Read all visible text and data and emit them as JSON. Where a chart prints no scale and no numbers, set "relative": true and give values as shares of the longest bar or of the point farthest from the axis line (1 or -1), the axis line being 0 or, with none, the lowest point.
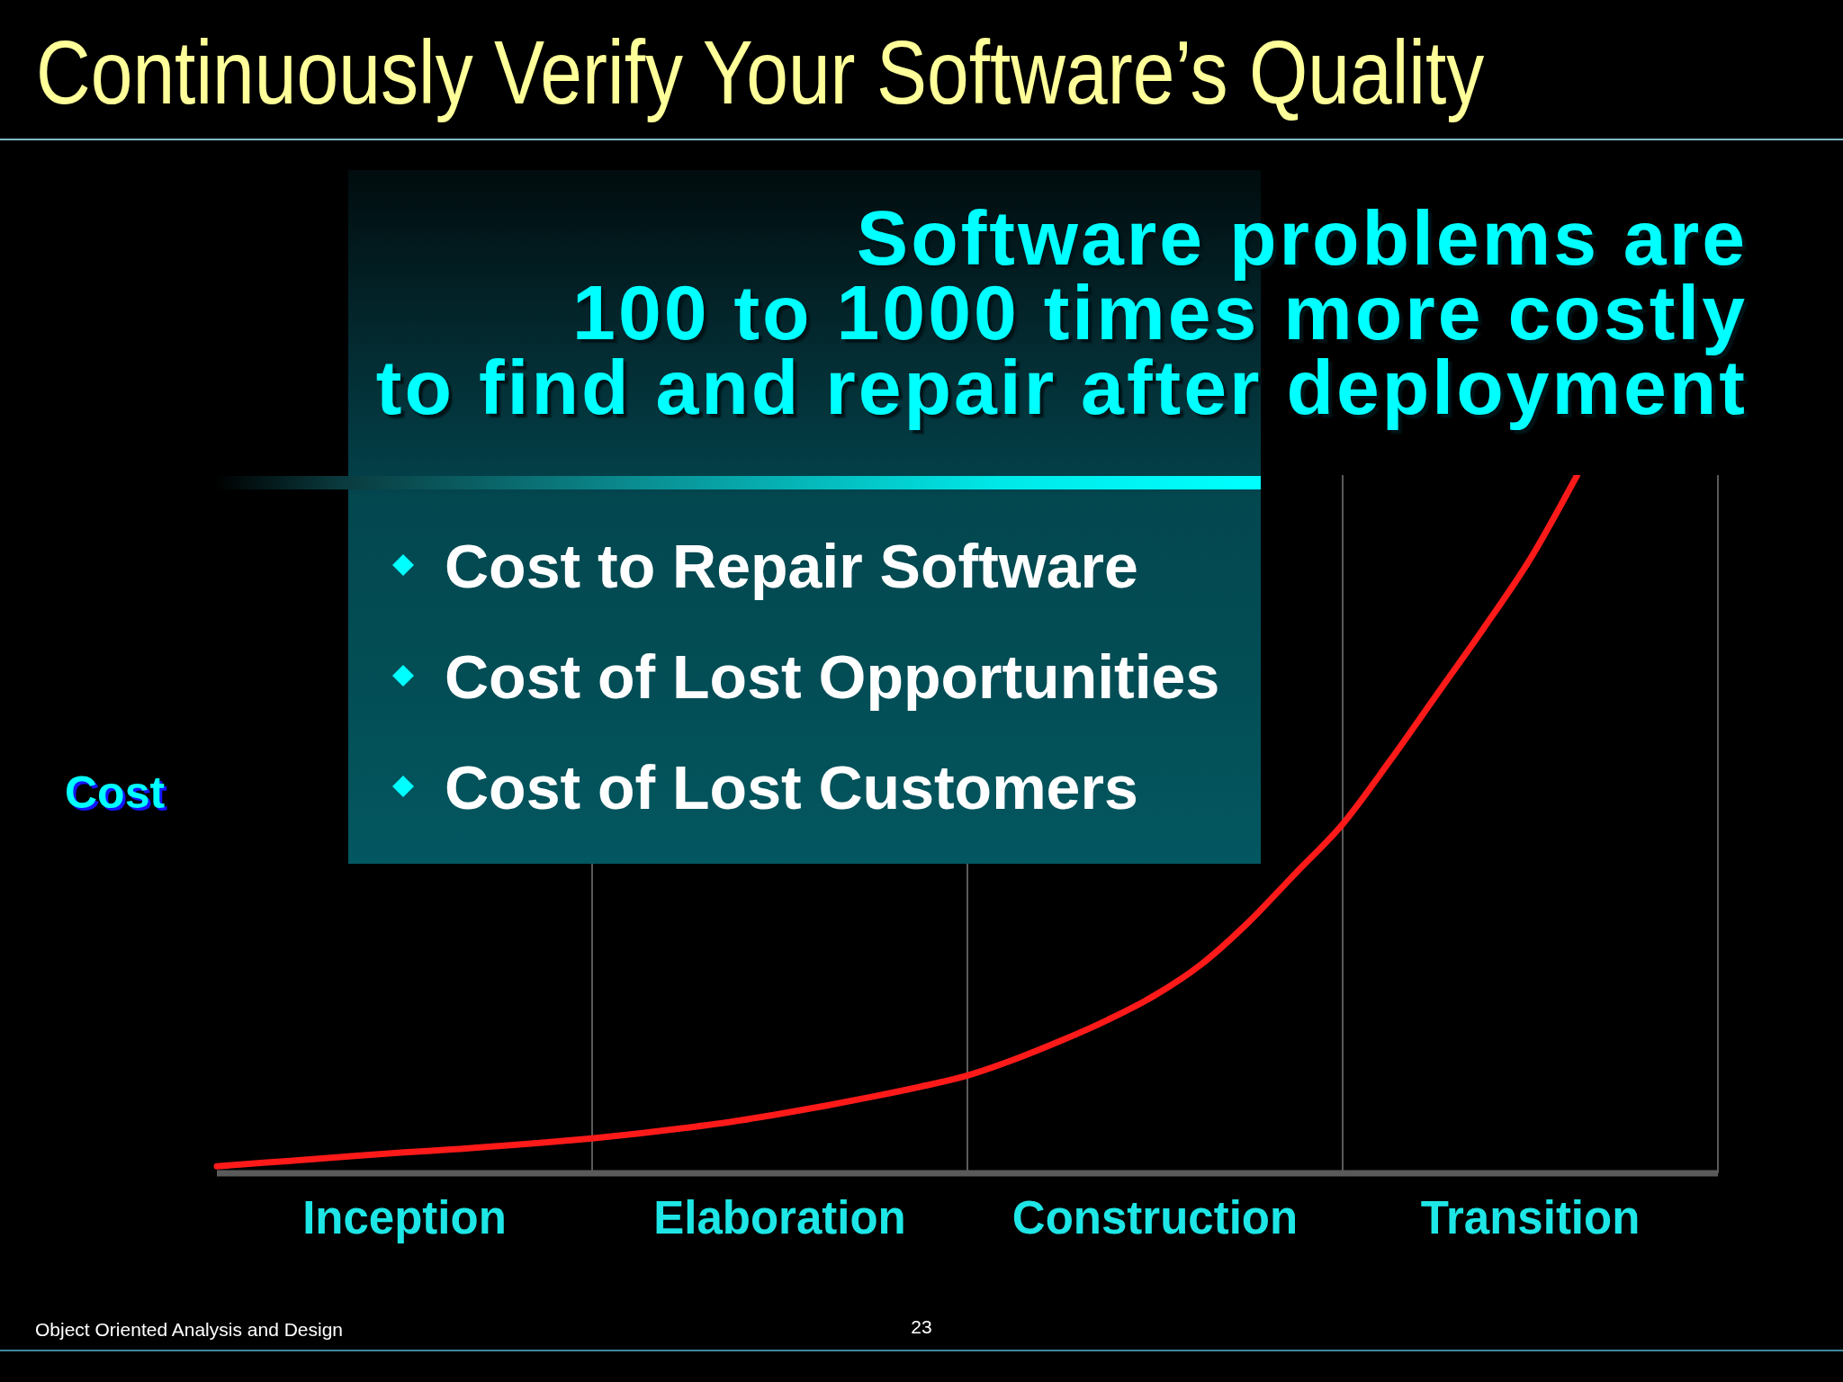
{
  "chart_data": {
    "type": "line",
    "title": "Continuously Verify Your Software’s Quality",
    "ylabel": "Cost",
    "relative": true,
    "categories": [
      null,
      null,
      null,
      null,
      "Inception",
      null,
      null,
      null,
      null,
      null,
      null,
      null,
      "Elaboration",
      null,
      null,
      null,
      null,
      null,
      null,
      null,
      "Construction",
      null,
      null,
      null,
      null,
      null,
      null,
      null,
      "Transition",
      null,
      null,
      null,
      null
    ],
    "series": [
      {
        "color": "#ff1a1a",
        "values": [
          0.01,
          0.015,
          0.02,
          0.025,
          0.03,
          0.034,
          0.039,
          0.044,
          0.05,
          0.057,
          0.065,
          0.074,
          0.085,
          0.097,
          0.11,
          0.124,
          0.14,
          0.163,
          0.19,
          0.22,
          0.255,
          0.3,
          0.36,
          0.43,
          0.5,
          0.59,
          0.685,
          0.78,
          0.88,
          1,
          null,
          null,
          null
        ]
      }
    ],
    "marker": "none",
    "grid": "x",
    "annotations": [
      "Software problems are\n100 to 1000 times more costly\nto find and repair after deployment",
      "Cost to Repair Software",
      "Cost of Lost Opportunities",
      "Cost of Lost Customers",
      "Object Oriented Analysis and Design",
      "23"
    ]
  }
}
